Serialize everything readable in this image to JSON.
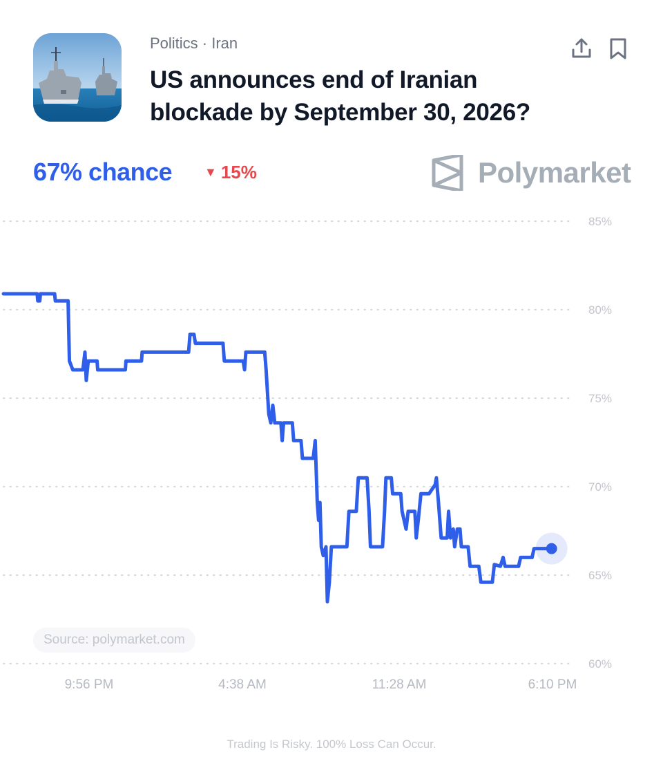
{
  "header": {
    "category": "Politics · Iran",
    "title": "US announces end of Iranian blockade by September 30, 2026?",
    "thumbnail_icon": "warships-image"
  },
  "actions": {
    "share_icon": "share-icon",
    "bookmark_icon": "bookmark-icon"
  },
  "odds": {
    "chance_label": "67% chance",
    "change_label": "15%",
    "change_direction": "down",
    "chance_color": "#2f5fe8",
    "change_color": "#e5484d"
  },
  "brand": {
    "name": "Polymarket",
    "logo_icon": "polymarket-logo-icon"
  },
  "source_label": "Source: polymarket.com",
  "disclaimer": "Trading Is Risky. 100% Loss Can Occur.",
  "chart_data": {
    "type": "line",
    "title": "",
    "xlabel": "",
    "ylabel": "",
    "y_ticks": [
      "85%",
      "80%",
      "75%",
      "70%",
      "65%",
      "60%"
    ],
    "x_ticks": [
      "9:56 PM",
      "4:38 AM",
      "11:28 AM",
      "6:10 PM"
    ],
    "ylim": [
      60,
      85
    ],
    "grid": true,
    "line_color": "#2f5fe8",
    "series": [
      {
        "values": [
          [
            0.0,
            80.9
          ],
          [
            0.05,
            80.9
          ],
          [
            0.051,
            80.5
          ],
          [
            0.054,
            80.5
          ],
          [
            0.055,
            80.9
          ],
          [
            0.076,
            80.9
          ],
          [
            0.077,
            80.5
          ],
          [
            0.096,
            80.5
          ],
          [
            0.098,
            77.1
          ],
          [
            0.103,
            76.6
          ],
          [
            0.118,
            76.6
          ],
          [
            0.121,
            77.6
          ],
          [
            0.123,
            76.0
          ],
          [
            0.126,
            77.1
          ],
          [
            0.139,
            77.1
          ],
          [
            0.14,
            76.6
          ],
          [
            0.181,
            76.6
          ],
          [
            0.182,
            77.1
          ],
          [
            0.205,
            77.1
          ],
          [
            0.206,
            77.6
          ],
          [
            0.275,
            77.6
          ],
          [
            0.277,
            78.6
          ],
          [
            0.283,
            78.6
          ],
          [
            0.285,
            78.1
          ],
          [
            0.326,
            78.1
          ],
          [
            0.328,
            77.1
          ],
          [
            0.356,
            77.1
          ],
          [
            0.358,
            76.6
          ],
          [
            0.36,
            77.6
          ],
          [
            0.388,
            77.6
          ],
          [
            0.39,
            76.6
          ],
          [
            0.394,
            74.1
          ],
          [
            0.397,
            73.6
          ],
          [
            0.4,
            74.6
          ],
          [
            0.403,
            73.6
          ],
          [
            0.412,
            73.6
          ],
          [
            0.414,
            72.6
          ],
          [
            0.416,
            73.6
          ],
          [
            0.429,
            73.6
          ],
          [
            0.431,
            72.6
          ],
          [
            0.442,
            72.6
          ],
          [
            0.444,
            71.6
          ],
          [
            0.46,
            71.6
          ],
          [
            0.463,
            72.6
          ],
          [
            0.466,
            69.1
          ],
          [
            0.468,
            68.1
          ],
          [
            0.47,
            69.1
          ],
          [
            0.472,
            66.6
          ],
          [
            0.475,
            66.1
          ],
          [
            0.479,
            66.6
          ],
          [
            0.481,
            63.5
          ],
          [
            0.484,
            64.6
          ],
          [
            0.487,
            66.6
          ],
          [
            0.51,
            66.6
          ],
          [
            0.513,
            68.6
          ],
          [
            0.524,
            68.6
          ],
          [
            0.527,
            70.5
          ],
          [
            0.54,
            70.5
          ],
          [
            0.543,
            68.6
          ],
          [
            0.545,
            66.6
          ],
          [
            0.563,
            66.6
          ],
          [
            0.566,
            68.6
          ],
          [
            0.568,
            70.5
          ],
          [
            0.576,
            70.5
          ],
          [
            0.578,
            69.6
          ],
          [
            0.585,
            69.6
          ],
          [
            0.59,
            69.6
          ],
          [
            0.592,
            68.6
          ],
          [
            0.598,
            67.6
          ],
          [
            0.601,
            68.6
          ],
          [
            0.611,
            68.6
          ],
          [
            0.613,
            67.1
          ],
          [
            0.616,
            68.1
          ],
          [
            0.62,
            69.6
          ],
          [
            0.632,
            69.6
          ],
          [
            0.641,
            70.1
          ],
          [
            0.643,
            70.5
          ],
          [
            0.646,
            69.1
          ],
          [
            0.65,
            67.1
          ],
          [
            0.659,
            67.1
          ],
          [
            0.661,
            68.6
          ],
          [
            0.664,
            67.1
          ],
          [
            0.668,
            67.6
          ],
          [
            0.67,
            66.6
          ],
          [
            0.674,
            67.6
          ],
          [
            0.678,
            67.6
          ],
          [
            0.68,
            66.6
          ],
          [
            0.69,
            66.6
          ],
          [
            0.693,
            65.5
          ],
          [
            0.706,
            65.5
          ],
          [
            0.709,
            64.6
          ],
          [
            0.726,
            64.6
          ],
          [
            0.729,
            65.6
          ],
          [
            0.738,
            65.5
          ],
          [
            0.742,
            66.0
          ],
          [
            0.745,
            65.5
          ],
          [
            0.765,
            65.5
          ],
          [
            0.768,
            66.0
          ],
          [
            0.785,
            66.0
          ],
          [
            0.788,
            66.5
          ],
          [
            0.814,
            66.5
          ]
        ]
      }
    ]
  }
}
